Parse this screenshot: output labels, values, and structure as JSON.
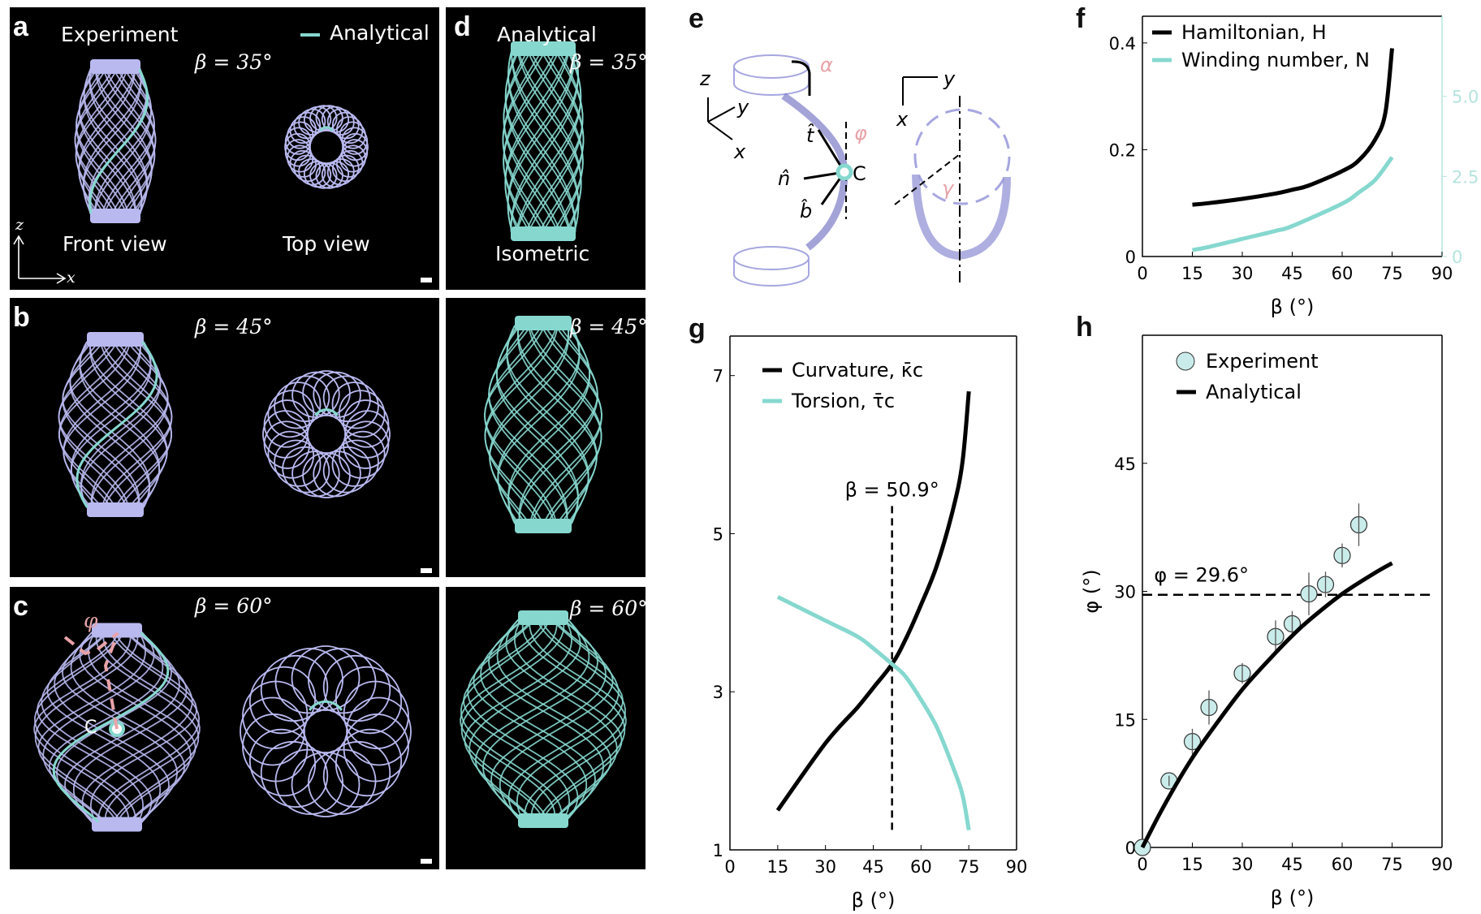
{
  "colors": {
    "lavender": "#b9b9f0",
    "teal": "#86d8cf",
    "black": "#000000",
    "pink": "#e8a3a8",
    "axis_teal": "#b5e3de"
  },
  "panels": {
    "a": {
      "letter": "a",
      "experiment": "Experiment",
      "analytical": "Analytical",
      "beta": "β = 35°",
      "front": "Front view",
      "top": "Top view",
      "z": "z",
      "x": "x"
    },
    "b": {
      "letter": "b",
      "beta": "β = 45°"
    },
    "c": {
      "letter": "c",
      "beta": "β = 60°",
      "phi": "φ",
      "C": "C"
    },
    "d": {
      "letter": "d",
      "analytical": "Analytical",
      "beta35": "β = 35°",
      "isometric": "Isometric",
      "beta45": "β = 45°",
      "beta60": "β = 60°"
    },
    "e": {
      "letter": "e",
      "alpha": "α",
      "z": "z",
      "y": "y",
      "x": "x",
      "t": "t̂",
      "phi": "φ",
      "n": "n̂",
      "b": "b̂",
      "C": "C",
      "y2": "y",
      "x2": "x",
      "gamma": "γ"
    },
    "f": {
      "letter": "f"
    },
    "g": {
      "letter": "g"
    },
    "h": {
      "letter": "h"
    }
  },
  "chart_data": [
    {
      "id": "f",
      "type": "line",
      "xlabel": "β (°)",
      "xlim": [
        0,
        90
      ],
      "xticks": [
        0,
        15,
        30,
        45,
        60,
        75,
        90
      ],
      "ylim": [
        0,
        0.45
      ],
      "yticks": [
        0,
        0.2,
        0.4
      ],
      "ytick_labels": [
        "0",
        "0.2",
        "0.4"
      ],
      "y2lim": [
        0,
        7.5
      ],
      "y2ticks": [
        0,
        2.5,
        5.0
      ],
      "y2tick_labels": [
        "0",
        "2.5",
        "5.0"
      ],
      "legend": "top-left",
      "series": [
        {
          "name": "Hamiltonian, H",
          "axis": "left",
          "color": "#000000",
          "x": [
            15,
            20,
            30,
            40,
            45,
            50,
            60,
            65,
            70,
            73,
            75
          ],
          "y": [
            0.097,
            0.1,
            0.108,
            0.118,
            0.125,
            0.133,
            0.16,
            0.18,
            0.22,
            0.27,
            0.39
          ]
        },
        {
          "name": "Winding number, N",
          "axis": "right",
          "color": "#86d8cf",
          "x": [
            15,
            20,
            30,
            40,
            45,
            60,
            65,
            70,
            75
          ],
          "y": [
            0.2,
            0.3,
            0.55,
            0.8,
            0.95,
            1.65,
            2.0,
            2.4,
            3.1
          ]
        }
      ]
    },
    {
      "id": "g",
      "type": "line",
      "xlabel": "β (°)",
      "xlim": [
        0,
        90
      ],
      "xticks": [
        0,
        15,
        30,
        45,
        60,
        75,
        90
      ],
      "ylim": [
        1,
        7.5
      ],
      "yticks": [
        1,
        3,
        5,
        7
      ],
      "ytick_labels": [
        "1",
        "3",
        "5",
        "7"
      ],
      "legend": "top-left",
      "annotation": {
        "text": "β = 50.9°",
        "x": 50.9
      },
      "series": [
        {
          "name": "Curvature, κ̄c",
          "color": "#000000",
          "x": [
            15,
            30,
            40,
            45,
            50.9,
            55,
            60,
            65,
            70,
            73,
            75
          ],
          "y": [
            1.5,
            2.35,
            2.8,
            3.05,
            3.35,
            3.65,
            4.1,
            4.6,
            5.3,
            5.9,
            6.8
          ]
        },
        {
          "name": "Torsion, τ̄c",
          "color": "#86d8cf",
          "x": [
            15,
            30,
            40,
            45,
            50.9,
            55,
            60,
            65,
            70,
            73,
            75
          ],
          "y": [
            4.2,
            3.9,
            3.7,
            3.55,
            3.35,
            3.2,
            2.9,
            2.55,
            2.05,
            1.7,
            1.25
          ]
        }
      ]
    },
    {
      "id": "h",
      "type": "scatter",
      "xlabel": "β (°)",
      "ylabel": "φ (°)",
      "xlim": [
        0,
        90
      ],
      "xticks": [
        0,
        15,
        30,
        45,
        60,
        75,
        90
      ],
      "ylim": [
        0,
        60
      ],
      "yticks": [
        0,
        15,
        30,
        45
      ],
      "ytick_labels": [
        "0",
        "15",
        "30",
        "45"
      ],
      "legend": "top-left",
      "annotation": {
        "text": "φ = 29.6°",
        "y": 29.6
      },
      "series": [
        {
          "name": "Experiment",
          "kind": "points",
          "color": "#c9ecea",
          "x": [
            0,
            8,
            15,
            20,
            30,
            40,
            45,
            50,
            55,
            60,
            65
          ],
          "y": [
            0,
            7.8,
            12.4,
            16.4,
            20.4,
            24.7,
            26.2,
            29.7,
            30.8,
            34.2,
            37.8
          ],
          "err": [
            0,
            0.6,
            1.5,
            2,
            1.2,
            1.9,
            1.5,
            2.5,
            1.5,
            1.4,
            2.5
          ]
        },
        {
          "name": "Analytical",
          "kind": "line",
          "color": "#000000",
          "x": [
            0,
            5,
            10,
            15,
            20,
            30,
            40,
            45,
            50,
            60,
            70,
            75
          ],
          "y": [
            0,
            3.8,
            7.3,
            10.5,
            13.3,
            18.5,
            22.8,
            24.8,
            26.6,
            29.7,
            32.2,
            33.3
          ]
        }
      ]
    }
  ]
}
